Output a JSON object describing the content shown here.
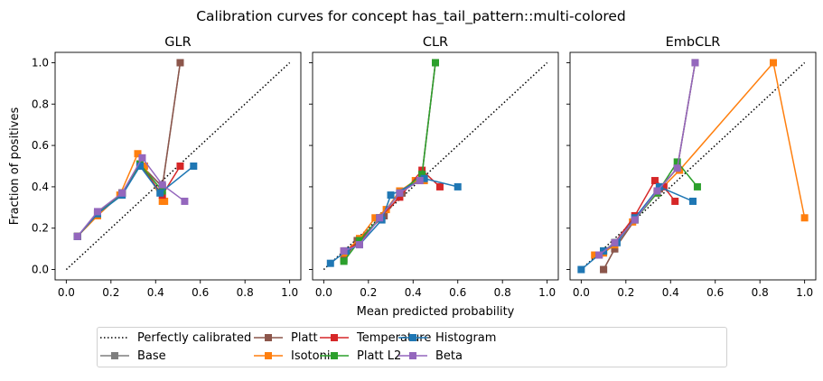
{
  "figure": {
    "suptitle": "Calibration curves for concept has_tail_pattern::multi-colored",
    "xlabel": "Mean predicted probability",
    "ylabel": "Fraction of positives"
  },
  "colors": {
    "reference": "#000000",
    "Base": "#7f7f7f",
    "Platt": "#8c564b",
    "Isotonic": "#ff7f0e",
    "Temperature": "#d62728",
    "Platt L2": "#2ca02c",
    "Histogram": "#1f77b4",
    "Beta": "#9467bd"
  },
  "legend": {
    "placement": "lower-center",
    "entries": [
      {
        "label": "Perfectly calibrated",
        "style": "dotted"
      },
      {
        "label": "Base",
        "style": "marker"
      },
      {
        "label": "Platt",
        "style": "marker"
      },
      {
        "label": "Isotonic",
        "style": "marker"
      },
      {
        "label": "Temperature",
        "style": "marker"
      },
      {
        "label": "Platt L2",
        "style": "marker"
      },
      {
        "label": "Histogram",
        "style": "marker"
      },
      {
        "label": "Beta",
        "style": "marker"
      }
    ]
  },
  "chart_data": [
    {
      "type": "line",
      "title": "GLR",
      "xlim": [
        -0.05,
        1.05
      ],
      "ylim": [
        -0.05,
        1.05
      ],
      "xticks": [
        "0.0",
        "0.2",
        "0.4",
        "0.6",
        "0.8",
        "1.0"
      ],
      "yticks": [
        "0.0",
        "0.2",
        "0.4",
        "0.6",
        "0.8",
        "1.0"
      ],
      "reference": {
        "name": "Perfectly calibrated",
        "x": [
          0,
          1
        ],
        "y": [
          0,
          1
        ]
      },
      "series": [
        {
          "name": "Base",
          "points": [
            [
              0.05,
              0.16
            ],
            [
              0.14,
              0.27
            ],
            [
              0.25,
              0.37
            ],
            [
              0.33,
              0.51
            ],
            [
              0.43,
              0.4
            ],
            [
              0.51,
              1.0
            ]
          ]
        },
        {
          "name": "Platt",
          "points": [
            [
              0.05,
              0.16
            ],
            [
              0.14,
              0.27
            ],
            [
              0.25,
              0.37
            ],
            [
              0.33,
              0.51
            ],
            [
              0.43,
              0.4
            ],
            [
              0.51,
              1.0
            ]
          ]
        },
        {
          "name": "Isotonic",
          "points": [
            [
              0.05,
              0.16
            ],
            [
              0.14,
              0.26
            ],
            [
              0.24,
              0.36
            ],
            [
              0.32,
              0.56
            ],
            [
              0.35,
              0.5
            ],
            [
              0.43,
              0.33
            ],
            [
              0.44,
              0.33
            ]
          ]
        },
        {
          "name": "Temperature",
          "points": [
            [
              0.05,
              0.16
            ],
            [
              0.14,
              0.27
            ],
            [
              0.25,
              0.37
            ],
            [
              0.33,
              0.51
            ],
            [
              0.43,
              0.36
            ],
            [
              0.51,
              0.5
            ]
          ]
        },
        {
          "name": "Platt L2",
          "points": [
            [
              0.05,
              0.16
            ],
            [
              0.14,
              0.27
            ],
            [
              0.25,
              0.37
            ],
            [
              0.33,
              0.51
            ],
            [
              0.43,
              0.38
            ]
          ]
        },
        {
          "name": "Histogram",
          "points": [
            [
              0.05,
              0.16
            ],
            [
              0.14,
              0.27
            ],
            [
              0.25,
              0.36
            ],
            [
              0.33,
              0.5
            ],
            [
              0.42,
              0.37
            ],
            [
              0.57,
              0.5
            ]
          ]
        },
        {
          "name": "Beta",
          "points": [
            [
              0.05,
              0.16
            ],
            [
              0.14,
              0.28
            ],
            [
              0.25,
              0.37
            ],
            [
              0.34,
              0.54
            ],
            [
              0.43,
              0.41
            ],
            [
              0.53,
              0.33
            ]
          ]
        }
      ]
    },
    {
      "type": "line",
      "title": "CLR",
      "xlim": [
        -0.05,
        1.05
      ],
      "ylim": [
        -0.05,
        1.05
      ],
      "xticks": [
        "0.0",
        "0.2",
        "0.4",
        "0.6",
        "0.8",
        "1.0"
      ],
      "yticks": [
        "0.0",
        "0.2",
        "0.4",
        "0.6",
        "0.8",
        "1.0"
      ],
      "reference": {
        "name": "Perfectly calibrated",
        "x": [
          0,
          1
        ],
        "y": [
          0,
          1
        ]
      },
      "series": [
        {
          "name": "Base",
          "points": [
            [
              0.09,
              0.05
            ],
            [
              0.15,
              0.14
            ],
            [
              0.27,
              0.26
            ],
            [
              0.35,
              0.37
            ],
            [
              0.44,
              0.46
            ],
            [
              0.5,
              1.0
            ]
          ]
        },
        {
          "name": "Platt",
          "points": [
            [
              0.09,
              0.05
            ],
            [
              0.15,
              0.14
            ],
            [
              0.27,
              0.26
            ],
            [
              0.35,
              0.37
            ],
            [
              0.44,
              0.46
            ],
            [
              0.5,
              1.0
            ]
          ]
        },
        {
          "name": "Isotonic",
          "points": [
            [
              0.09,
              0.08
            ],
            [
              0.16,
              0.15
            ],
            [
              0.23,
              0.25
            ],
            [
              0.28,
              0.29
            ],
            [
              0.34,
              0.38
            ],
            [
              0.41,
              0.43
            ],
            [
              0.45,
              0.43
            ]
          ]
        },
        {
          "name": "Temperature",
          "points": [
            [
              0.09,
              0.09
            ],
            [
              0.16,
              0.13
            ],
            [
              0.25,
              0.25
            ],
            [
              0.34,
              0.35
            ],
            [
              0.44,
              0.48
            ],
            [
              0.52,
              0.4
            ]
          ]
        },
        {
          "name": "Platt L2",
          "points": [
            [
              0.09,
              0.04
            ],
            [
              0.16,
              0.14
            ],
            [
              0.25,
              0.25
            ],
            [
              0.34,
              0.37
            ],
            [
              0.44,
              0.46
            ],
            [
              0.5,
              1.0
            ]
          ]
        },
        {
          "name": "Histogram",
          "points": [
            [
              0.03,
              0.03
            ],
            [
              0.1,
              0.09
            ],
            [
              0.16,
              0.12
            ],
            [
              0.26,
              0.24
            ],
            [
              0.3,
              0.36
            ],
            [
              0.45,
              0.44
            ],
            [
              0.6,
              0.4
            ]
          ]
        },
        {
          "name": "Beta",
          "points": [
            [
              0.09,
              0.09
            ],
            [
              0.16,
              0.12
            ],
            [
              0.25,
              0.25
            ],
            [
              0.34,
              0.37
            ],
            [
              0.43,
              0.43
            ]
          ]
        }
      ]
    },
    {
      "type": "line",
      "title": "EmbCLR",
      "xlim": [
        -0.05,
        1.05
      ],
      "ylim": [
        -0.05,
        1.05
      ],
      "xticks": [
        "0.0",
        "0.2",
        "0.4",
        "0.6",
        "0.8",
        "1.0"
      ],
      "yticks": [
        "0.0",
        "0.2",
        "0.4",
        "0.6",
        "0.8",
        "1.0"
      ],
      "reference": {
        "name": "Perfectly calibrated",
        "x": [
          0,
          1
        ],
        "y": [
          0,
          1
        ]
      },
      "series": [
        {
          "name": "Base",
          "points": [
            [
              0.1,
              0.0
            ],
            [
              0.15,
              0.1
            ],
            [
              0.24,
              0.24
            ],
            [
              0.35,
              0.39
            ],
            [
              0.43,
              0.49
            ],
            [
              0.51,
              1.0
            ]
          ]
        },
        {
          "name": "Platt",
          "points": [
            [
              0.1,
              0.0
            ],
            [
              0.15,
              0.1
            ],
            [
              0.24,
              0.24
            ],
            [
              0.35,
              0.39
            ],
            [
              0.43,
              0.49
            ],
            [
              0.51,
              1.0
            ]
          ]
        },
        {
          "name": "Isotonic",
          "points": [
            [
              0.06,
              0.07
            ],
            [
              0.1,
              0.08
            ],
            [
              0.15,
              0.12
            ],
            [
              0.23,
              0.23
            ],
            [
              0.34,
              0.37
            ],
            [
              0.44,
              0.48
            ],
            [
              0.86,
              1.0
            ],
            [
              1.0,
              0.25
            ]
          ]
        },
        {
          "name": "Temperature",
          "points": [
            [
              0.08,
              0.07
            ],
            [
              0.15,
              0.13
            ],
            [
              0.24,
              0.26
            ],
            [
              0.33,
              0.43
            ],
            [
              0.37,
              0.4
            ],
            [
              0.42,
              0.33
            ]
          ]
        },
        {
          "name": "Platt L2",
          "points": [
            [
              0.1,
              0.09
            ],
            [
              0.15,
              0.13
            ],
            [
              0.24,
              0.24
            ],
            [
              0.34,
              0.37
            ],
            [
              0.43,
              0.52
            ],
            [
              0.52,
              0.4
            ]
          ]
        },
        {
          "name": "Histogram",
          "points": [
            [
              0.0,
              0.0
            ],
            [
              0.1,
              0.09
            ],
            [
              0.16,
              0.13
            ],
            [
              0.24,
              0.25
            ],
            [
              0.35,
              0.4
            ],
            [
              0.5,
              0.33
            ]
          ]
        },
        {
          "name": "Beta",
          "points": [
            [
              0.08,
              0.07
            ],
            [
              0.15,
              0.13
            ],
            [
              0.24,
              0.24
            ],
            [
              0.34,
              0.38
            ],
            [
              0.43,
              0.49
            ],
            [
              0.51,
              1.0
            ]
          ]
        }
      ]
    }
  ]
}
